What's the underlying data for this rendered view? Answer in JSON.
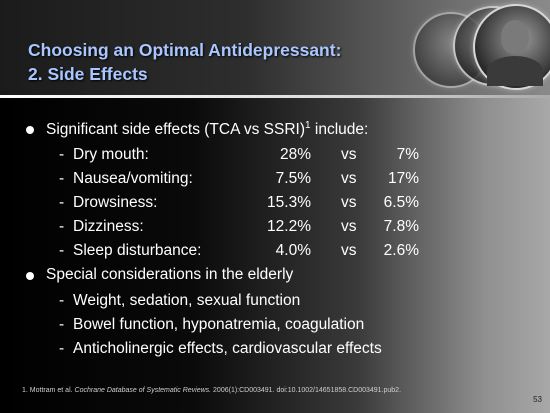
{
  "title": {
    "line1": "Choosing an Optimal Antidepressant:",
    "line2": "2. Side Effects"
  },
  "bullets": [
    {
      "text": "Significant side effects (TCA vs SSRI)",
      "superscript": "1",
      "text_after": " include:",
      "rows": [
        {
          "label": "Dry mouth:",
          "tca": "28%",
          "vs": "vs",
          "ssri": "7%"
        },
        {
          "label": "Nausea/vomiting:",
          "tca": "7.5%",
          "vs": "vs",
          "ssri": "17%"
        },
        {
          "label": "Drowsiness:",
          "tca": "15.3%",
          "vs": "vs",
          "ssri": "6.5%"
        },
        {
          "label": "Dizziness:",
          "tca": "12.2%",
          "vs": "vs",
          "ssri": "7.8%"
        },
        {
          "label": "Sleep disturbance:",
          "tca": "4.0%",
          "vs": "vs",
          "ssri": "2.6%"
        }
      ]
    },
    {
      "text": "Special considerations in the elderly",
      "items": [
        "Weight, sedation, sexual function",
        "Bowel function, hyponatremia, coagulation",
        "Anticholinergic effects, cardiovascular effects"
      ]
    }
  ],
  "footnote": {
    "prefix": "1. Mottram et al. ",
    "journal": "Cochrane Database of Systematic Reviews.",
    "suffix": " 2006(1):CD003491. doi:10.1002/14651858.CD003491.pub2."
  },
  "page_number": "53"
}
